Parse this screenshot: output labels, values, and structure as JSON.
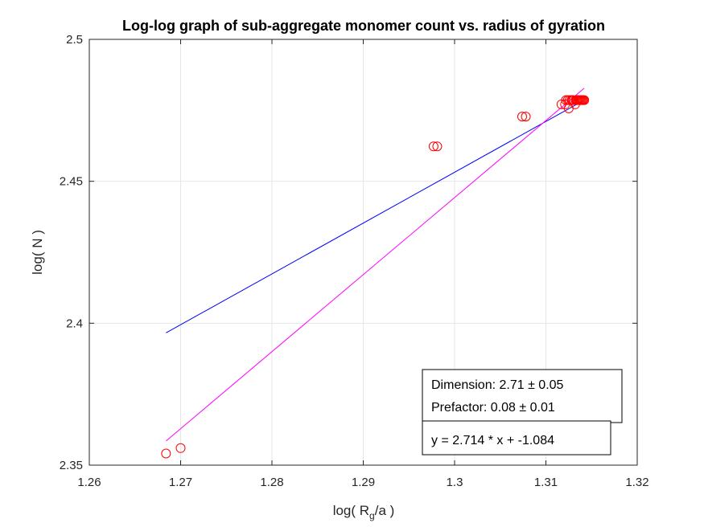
{
  "chart_data": {
    "type": "scatter",
    "title": "Log-log graph of sub-aggregate monomer count vs. radius of gyration",
    "xlabel": {
      "main": "log( R",
      "subscript": "g",
      "tail": "/a )"
    },
    "ylabel": "log( N )",
    "xlim": [
      1.26,
      1.32
    ],
    "ylim": [
      2.35,
      2.5
    ],
    "xticks": [
      "1.26",
      "1.27",
      "1.28",
      "1.29",
      "1.3",
      "1.31",
      "1.32"
    ],
    "yticks": [
      "2.35",
      "2.4",
      "2.45",
      "2.5"
    ],
    "grid": true,
    "colors": {
      "points": "#ff0000",
      "fit_line_1": "#0000ff",
      "fit_line_2": "#ff00ff",
      "axes": "#262626",
      "grid": "#e6e6e6"
    },
    "points": [
      {
        "x": 1.2684,
        "y": 2.3541
      },
      {
        "x": 1.27,
        "y": 2.356
      },
      {
        "x": 1.2977,
        "y": 2.4623
      },
      {
        "x": 1.2981,
        "y": 2.4623
      },
      {
        "x": 1.3074,
        "y": 2.4728
      },
      {
        "x": 1.3078,
        "y": 2.4728
      },
      {
        "x": 1.3117,
        "y": 2.4771
      },
      {
        "x": 1.3121,
        "y": 2.4771
      },
      {
        "x": 1.3122,
        "y": 2.4786
      },
      {
        "x": 1.3124,
        "y": 2.4786
      },
      {
        "x": 1.3125,
        "y": 2.4757
      },
      {
        "x": 1.3126,
        "y": 2.4786
      },
      {
        "x": 1.3128,
        "y": 2.4786
      },
      {
        "x": 1.3129,
        "y": 2.4786
      },
      {
        "x": 1.313,
        "y": 2.4786
      },
      {
        "x": 1.3132,
        "y": 2.4771
      },
      {
        "x": 1.3133,
        "y": 2.4786
      },
      {
        "x": 1.3134,
        "y": 2.4786
      },
      {
        "x": 1.3135,
        "y": 2.4786
      },
      {
        "x": 1.3136,
        "y": 2.4786
      },
      {
        "x": 1.3137,
        "y": 2.4786
      },
      {
        "x": 1.3138,
        "y": 2.4786
      },
      {
        "x": 1.3139,
        "y": 2.4786
      },
      {
        "x": 1.314,
        "y": 2.4786
      },
      {
        "x": 1.3141,
        "y": 2.4786
      },
      {
        "x": 1.3142,
        "y": 2.4786
      }
    ],
    "lines": [
      {
        "color": "#0000ff",
        "x": [
          1.2684,
          1.3142
        ],
        "y": [
          2.3966,
          2.4786
        ]
      },
      {
        "color": "#ff00ff",
        "x": [
          1.2684,
          1.3142
        ],
        "y": [
          2.3585,
          2.4828
        ]
      }
    ],
    "annotations": {
      "box1": [
        "Dimension: 2.71 ± 0.05",
        "Prefactor: 0.08 ± 0.01"
      ],
      "box2": [
        "y = 2.714 * x + -1.084"
      ]
    }
  }
}
